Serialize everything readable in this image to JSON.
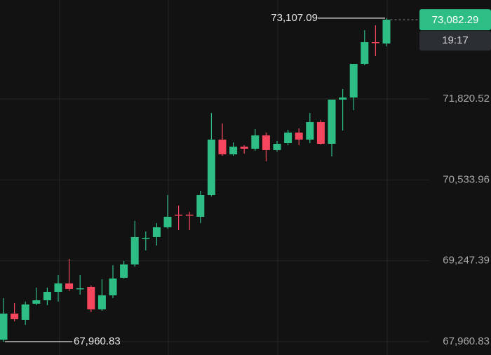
{
  "chart_data": {
    "type": "candlestick",
    "open": [
      67990,
      68407,
      68307,
      68564,
      68619,
      68753,
      68887,
      68798,
      68831,
      68474,
      68698,
      68977,
      69189,
      69602,
      69624,
      69780,
      69981,
      69981,
      69947,
      70293,
      71175,
      70941,
      71063,
      71030,
      71242,
      71008,
      71119,
      71287,
      71175,
      71454,
      71108,
      71811,
      71845,
      72380,
      72726,
      72704
    ],
    "high": [
      68653,
      68575,
      68597,
      68820,
      68820,
      69021,
      69278,
      69021,
      68854,
      68954,
      69177,
      69244,
      69881,
      69713,
      69847,
      70293,
      70126,
      70026,
      70360,
      71599,
      71432,
      71130,
      71086,
      71342,
      71287,
      71153,
      71331,
      71354,
      71599,
      71488,
      71811,
      71979,
      72380,
      72916,
      72994,
      73107.09
    ],
    "low": [
      67960.83,
      68285,
      68229,
      68541,
      68541,
      68597,
      68765,
      68709,
      68430,
      68452,
      68653,
      68965,
      69155,
      69412,
      69490,
      69758,
      69735,
      69735,
      69847,
      70271,
      70918,
      70918,
      70952,
      70997,
      70829,
      70985,
      71086,
      71086,
      71119,
      71097,
      70907,
      71320,
      71644,
      72358,
      72503,
      72659
    ],
    "close": [
      68407,
      68318,
      68552,
      68619,
      68753,
      68887,
      68798,
      68809,
      68474,
      68698,
      68965,
      69189,
      69624,
      69613,
      69780,
      69947,
      69970,
      69970,
      70293,
      71175,
      70941,
      71063,
      71030,
      71242,
      71008,
      71108,
      71287,
      71175,
      71454,
      71108,
      71811,
      71845,
      72380,
      72726,
      72715,
      73082.29
    ],
    "up_color": "#2ebd85",
    "down_color": "#f6465d",
    "ylim": [
      67748,
      73396
    ],
    "yticks": [
      {
        "value": 67960.83,
        "label": "67,960.83"
      },
      {
        "value": 69247.39,
        "label": "69,247.39"
      },
      {
        "value": 70533.96,
        "label": "70,533.96"
      },
      {
        "value": 71820.52,
        "label": "71,820.52"
      }
    ],
    "grid": true,
    "high_annotation": {
      "value": 73107.09,
      "label": "73,107.09"
    },
    "low_annotation": {
      "value": 67960.83,
      "label": "67,960.83"
    },
    "last_price": {
      "value": 73082.29,
      "label": "73,082.29"
    },
    "countdown": "19:17"
  }
}
